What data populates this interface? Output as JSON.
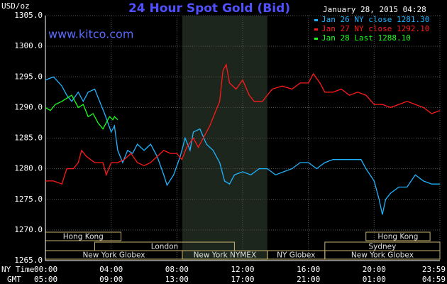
{
  "chart_data": {
    "type": "line",
    "title": "24 Hour Spot Gold (Bid)",
    "subtitle": "January 28, 2015 04:28",
    "watermark": "www.kitco.com",
    "y_label": "USD/oz",
    "x_row_labels": [
      "NY Time",
      "GMT"
    ],
    "ylim": [
      1265,
      1305
    ],
    "yticks": [
      {
        "value": 1265,
        "label": "1265.0"
      },
      {
        "value": 1270,
        "label": "1270.0"
      },
      {
        "value": 1275,
        "label": "1275.0"
      },
      {
        "value": 1280,
        "label": "1280.0"
      },
      {
        "value": 1285,
        "label": "1285.0"
      },
      {
        "value": 1290,
        "label": "1290.0"
      },
      {
        "value": 1295,
        "label": "1295.0"
      },
      {
        "value": 1300,
        "label": "1300.0"
      },
      {
        "value": 1305,
        "label": "1305.0"
      }
    ],
    "xlim": [
      0,
      24
    ],
    "xticks": [
      {
        "value": 0,
        "label": "00:00"
      },
      {
        "value": 4,
        "label": "04:00"
      },
      {
        "value": 8,
        "label": "08:00"
      },
      {
        "value": 12,
        "label": "12:00"
      },
      {
        "value": 16,
        "label": "16:00"
      },
      {
        "value": 20,
        "label": "20:00"
      },
      {
        "value": 24,
        "label": "23:59"
      }
    ],
    "xticks_gmt": [
      {
        "value": 0,
        "label": "05:00"
      },
      {
        "value": 4,
        "label": "09:00"
      },
      {
        "value": 8,
        "label": "13:00"
      },
      {
        "value": 12,
        "label": "17:00"
      },
      {
        "value": 16,
        "label": "21:00"
      },
      {
        "value": 20,
        "label": "01:00"
      },
      {
        "value": 24,
        "label": "04:59"
      }
    ],
    "grid": true,
    "shaded_range": [
      8.33,
      13.5
    ],
    "session_rows": [
      [
        {
          "label": "Hong Kong",
          "range": [
            0,
            4.6
          ]
        },
        {
          "label": "Hong Kong",
          "range": [
            19.5,
            23.4
          ]
        }
      ],
      [
        {
          "label": "London",
          "range": [
            3,
            11.5
          ]
        },
        {
          "label": "Sydney",
          "range": [
            17,
            24
          ]
        }
      ],
      [
        {
          "label": "New York Globex",
          "range": [
            0,
            8.33
          ]
        },
        {
          "label": "New York NYMEX",
          "range": [
            8.33,
            13.5
          ]
        },
        {
          "label": "NY Globex",
          "range": [
            13.5,
            17
          ]
        },
        {
          "label": "New York Globex",
          "range": [
            17,
            24
          ]
        }
      ]
    ],
    "series": [
      {
        "name": "Jan 26 NY close 1281.30",
        "color": "#1eb4ff",
        "x": [
          0,
          0.5,
          1,
          1.3,
          1.6,
          2,
          2.3,
          2.6,
          3,
          3.3,
          3.6,
          4,
          4.2,
          4.4,
          4.7,
          5,
          5.3,
          5.6,
          6,
          6.4,
          6.8,
          7.2,
          7.4,
          7.8,
          8.2,
          8.5,
          8.8,
          9,
          9.4,
          9.8,
          10.2,
          10.6,
          10.9,
          11.2,
          11.5,
          12,
          12.5,
          13,
          13.5,
          14,
          14.5,
          15,
          15.5,
          16,
          16.5,
          17,
          17.5,
          18.5,
          19.2,
          19.5,
          20,
          20.3,
          20.5,
          20.7,
          21,
          21.5,
          22,
          22.5,
          23,
          23.5,
          24
        ],
        "values": [
          1294.5,
          1295,
          1293.5,
          1292,
          1291,
          1292.5,
          1291,
          1292.5,
          1293,
          1291,
          1289,
          1286,
          1287,
          1283,
          1281,
          1283,
          1282.5,
          1284,
          1283,
          1284,
          1282,
          1279,
          1277.3,
          1279,
          1282,
          1285,
          1283,
          1286,
          1286.5,
          1284,
          1283,
          1281,
          1278,
          1277.5,
          1279,
          1279.5,
          1279,
          1280,
          1280,
          1279,
          1279.5,
          1280,
          1281,
          1281,
          1280,
          1281,
          1281.5,
          1281.5,
          1281.5,
          1280,
          1278,
          1275,
          1272.5,
          1275,
          1276,
          1277,
          1277,
          1279,
          1278,
          1277.5,
          1277.5
        ]
      },
      {
        "name": "Jan 27 NY close 1292.10",
        "color": "#ff1a1a",
        "x": [
          0,
          0.5,
          1,
          1.3,
          1.7,
          2,
          2.2,
          2.5,
          3,
          3.5,
          3.7,
          4,
          4.4,
          4.8,
          5.2,
          5.6,
          6,
          6.4,
          6.8,
          7.2,
          7.6,
          8,
          8.3,
          8.6,
          9,
          9.3,
          9.6,
          10,
          10.3,
          10.6,
          10.8,
          11,
          11.2,
          11.6,
          12,
          12.4,
          12.7,
          13.2,
          13.5,
          13.8,
          14.4,
          15,
          15.5,
          16,
          16.3,
          16.7,
          17,
          17.5,
          18,
          18.5,
          19,
          19.5,
          20,
          20.5,
          21,
          21.5,
          22,
          22.5,
          23,
          23.5,
          24
        ],
        "values": [
          1278,
          1278,
          1277.5,
          1280,
          1280,
          1281,
          1283,
          1282,
          1281,
          1281,
          1279,
          1281,
          1281,
          1281.5,
          1282.5,
          1281,
          1280.5,
          1281,
          1282,
          1283,
          1282.5,
          1282.5,
          1281.5,
          1283.5,
          1285,
          1283.5,
          1285,
          1287,
          1289,
          1291,
          1296,
          1297,
          1294,
          1293,
          1294.5,
          1292,
          1291,
          1291,
          1292,
          1293,
          1293.5,
          1293,
          1294,
          1294,
          1295.5,
          1294,
          1292.5,
          1292.5,
          1293,
          1292,
          1292.5,
          1292,
          1290.5,
          1290.5,
          1290,
          1290.5,
          1291,
          1290.5,
          1290,
          1289,
          1289.5
        ]
      },
      {
        "name": "Jan 28 Last 1288.10",
        "color": "#1aff1a",
        "x": [
          0,
          0.3,
          0.6,
          1,
          1.3,
          1.6,
          1.8,
          2,
          2.3,
          2.6,
          2.9,
          3.2,
          3.5,
          3.7,
          3.9,
          4.1,
          4.2,
          4.4
        ],
        "values": [
          1290,
          1289.5,
          1290.5,
          1291,
          1291.5,
          1292,
          1291,
          1290,
          1290.5,
          1288.5,
          1289,
          1287.5,
          1286.5,
          1287.5,
          1288.5,
          1288,
          1288.5,
          1288
        ]
      }
    ]
  }
}
